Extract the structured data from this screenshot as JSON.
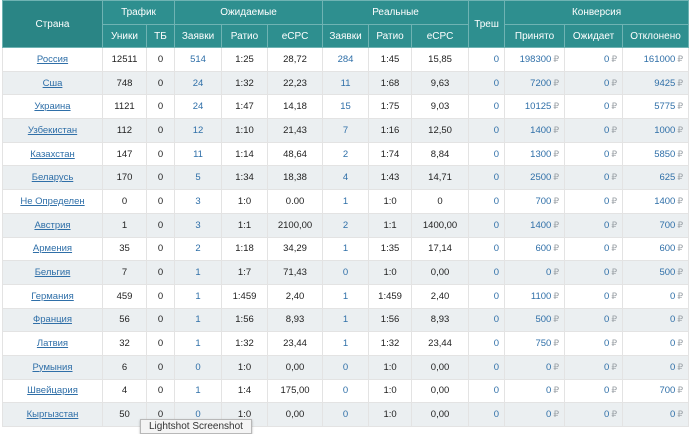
{
  "headers": {
    "country": "Страна",
    "traffic": "Трафик",
    "expected": "Ожидаемые",
    "real": "Реальные",
    "trash": "Треш",
    "conversion": "Конверсия",
    "unique": "Уники",
    "tb": "ТБ",
    "exp_requests": "Заявки",
    "exp_ratio": "Ратио",
    "exp_ecpc": "eCPC",
    "real_requests": "Заявки",
    "real_ratio": "Ратио",
    "real_ecpc": "eCPC",
    "accepted": "Принято",
    "waiting": "Ожидает",
    "rejected": "Отклонено"
  },
  "currency_symbol": "₽",
  "rows": [
    {
      "country": "Россия",
      "unique": "12511",
      "tb": "0",
      "exp_req": "514",
      "exp_ratio": "1:25",
      "exp_ecpc": "28,72",
      "real_req": "284",
      "real_ratio": "1:45",
      "real_ecpc": "15,85",
      "trash": "0",
      "accepted": "198300",
      "waiting": "0",
      "rejected": "161000"
    },
    {
      "country": "Сша",
      "unique": "748",
      "tb": "0",
      "exp_req": "24",
      "exp_ratio": "1:32",
      "exp_ecpc": "22,23",
      "real_req": "11",
      "real_ratio": "1:68",
      "real_ecpc": "9,63",
      "trash": "0",
      "accepted": "7200",
      "waiting": "0",
      "rejected": "9425"
    },
    {
      "country": "Украина",
      "unique": "1121",
      "tb": "0",
      "exp_req": "24",
      "exp_ratio": "1:47",
      "exp_ecpc": "14,18",
      "real_req": "15",
      "real_ratio": "1:75",
      "real_ecpc": "9,03",
      "trash": "0",
      "accepted": "10125",
      "waiting": "0",
      "rejected": "5775"
    },
    {
      "country": "Узбекистан",
      "unique": "112",
      "tb": "0",
      "exp_req": "12",
      "exp_ratio": "1:10",
      "exp_ecpc": "21,43",
      "real_req": "7",
      "real_ratio": "1:16",
      "real_ecpc": "12,50",
      "trash": "0",
      "accepted": "1400",
      "waiting": "0",
      "rejected": "1000"
    },
    {
      "country": "Казахстан",
      "unique": "147",
      "tb": "0",
      "exp_req": "11",
      "exp_ratio": "1:14",
      "exp_ecpc": "48,64",
      "real_req": "2",
      "real_ratio": "1:74",
      "real_ecpc": "8,84",
      "trash": "0",
      "accepted": "1300",
      "waiting": "0",
      "rejected": "5850"
    },
    {
      "country": "Беларусь",
      "unique": "170",
      "tb": "0",
      "exp_req": "5",
      "exp_ratio": "1:34",
      "exp_ecpc": "18,38",
      "real_req": "4",
      "real_ratio": "1:43",
      "real_ecpc": "14,71",
      "trash": "0",
      "accepted": "2500",
      "waiting": "0",
      "rejected": "625"
    },
    {
      "country": "Не Определен",
      "unique": "0",
      "tb": "0",
      "exp_req": "3",
      "exp_ratio": "1:0",
      "exp_ecpc": "0.00",
      "real_req": "1",
      "real_ratio": "1:0",
      "real_ecpc": "0",
      "trash": "0",
      "accepted": "700",
      "waiting": "0",
      "rejected": "1400"
    },
    {
      "country": "Австрия",
      "unique": "1",
      "tb": "0",
      "exp_req": "3",
      "exp_ratio": "1:1",
      "exp_ecpc": "2100,00",
      "real_req": "2",
      "real_ratio": "1:1",
      "real_ecpc": "1400,00",
      "trash": "0",
      "accepted": "1400",
      "waiting": "0",
      "rejected": "700"
    },
    {
      "country": "Армения",
      "unique": "35",
      "tb": "0",
      "exp_req": "2",
      "exp_ratio": "1:18",
      "exp_ecpc": "34,29",
      "real_req": "1",
      "real_ratio": "1:35",
      "real_ecpc": "17,14",
      "trash": "0",
      "accepted": "600",
      "waiting": "0",
      "rejected": "600"
    },
    {
      "country": "Бельгия",
      "unique": "7",
      "tb": "0",
      "exp_req": "1",
      "exp_ratio": "1:7",
      "exp_ecpc": "71,43",
      "real_req": "0",
      "real_ratio": "1:0",
      "real_ecpc": "0,00",
      "trash": "0",
      "accepted": "0",
      "waiting": "0",
      "rejected": "500"
    },
    {
      "country": "Германия",
      "unique": "459",
      "tb": "0",
      "exp_req": "1",
      "exp_ratio": "1:459",
      "exp_ecpc": "2,40",
      "real_req": "1",
      "real_ratio": "1:459",
      "real_ecpc": "2,40",
      "trash": "0",
      "accepted": "1100",
      "waiting": "0",
      "rejected": "0"
    },
    {
      "country": "Франция",
      "unique": "56",
      "tb": "0",
      "exp_req": "1",
      "exp_ratio": "1:56",
      "exp_ecpc": "8,93",
      "real_req": "1",
      "real_ratio": "1:56",
      "real_ecpc": "8,93",
      "trash": "0",
      "accepted": "500",
      "waiting": "0",
      "rejected": "0"
    },
    {
      "country": "Латвия",
      "unique": "32",
      "tb": "0",
      "exp_req": "1",
      "exp_ratio": "1:32",
      "exp_ecpc": "23,44",
      "real_req": "1",
      "real_ratio": "1:32",
      "real_ecpc": "23,44",
      "trash": "0",
      "accepted": "750",
      "waiting": "0",
      "rejected": "0"
    },
    {
      "country": "Румыния",
      "unique": "6",
      "tb": "0",
      "exp_req": "0",
      "exp_ratio": "1:0",
      "exp_ecpc": "0,00",
      "real_req": "0",
      "real_ratio": "1:0",
      "real_ecpc": "0,00",
      "trash": "0",
      "accepted": "0",
      "waiting": "0",
      "rejected": "0"
    },
    {
      "country": "Швейцария",
      "unique": "4",
      "tb": "0",
      "exp_req": "1",
      "exp_ratio": "1:4",
      "exp_ecpc": "175,00",
      "real_req": "0",
      "real_ratio": "1:0",
      "real_ecpc": "0,00",
      "trash": "0",
      "accepted": "0",
      "waiting": "0",
      "rejected": "700"
    },
    {
      "country": "Кыргызстан",
      "unique": "50",
      "tb": "0",
      "exp_req": "0",
      "exp_ratio": "1:0",
      "exp_ecpc": "0,00",
      "real_req": "0",
      "real_ratio": "1:0",
      "real_ecpc": "0,00",
      "trash": "0",
      "accepted": "0",
      "waiting": "0",
      "rejected": "0"
    }
  ],
  "tooltip": "Lightshot Screenshot"
}
